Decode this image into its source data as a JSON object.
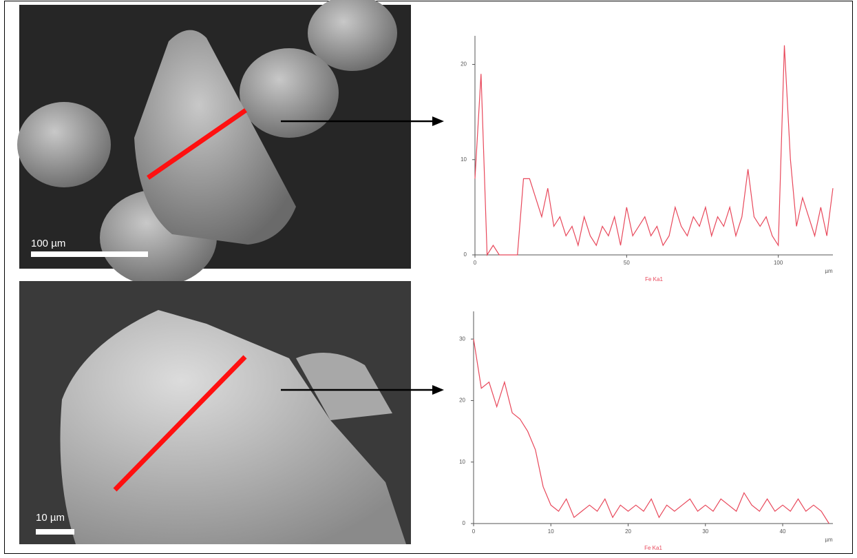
{
  "images": [
    {
      "scale_bar": "100 µm"
    },
    {
      "scale_bar": "10 µm"
    }
  ],
  "chart_data": [
    {
      "type": "line",
      "xlabel": "Fe Ka1",
      "x_unit": "µm",
      "color": "#e8475a",
      "xlim": [
        0,
        118
      ],
      "ylim": [
        0,
        23
      ],
      "xticks": [
        0,
        50,
        100
      ],
      "yticks": [
        0,
        10,
        20
      ],
      "x": [
        0,
        2,
        4,
        6,
        8,
        10,
        12,
        14,
        16,
        18,
        20,
        22,
        24,
        26,
        28,
        30,
        32,
        34,
        36,
        38,
        40,
        42,
        44,
        46,
        48,
        50,
        52,
        54,
        56,
        58,
        60,
        62,
        64,
        66,
        68,
        70,
        72,
        74,
        76,
        78,
        80,
        82,
        84,
        86,
        88,
        90,
        92,
        94,
        96,
        98,
        100,
        102,
        104,
        106,
        108,
        110,
        112,
        114,
        116,
        118
      ],
      "values": [
        8,
        19,
        0,
        1,
        0,
        0,
        0,
        0,
        8,
        8,
        6,
        4,
        7,
        3,
        4,
        2,
        3,
        1,
        4,
        2,
        1,
        3,
        2,
        4,
        1,
        5,
        2,
        3,
        4,
        2,
        3,
        1,
        2,
        5,
        3,
        2,
        4,
        3,
        5,
        2,
        4,
        3,
        5,
        2,
        4,
        9,
        4,
        3,
        4,
        2,
        1,
        22,
        10,
        3,
        6,
        4,
        2,
        5,
        2,
        7
      ]
    },
    {
      "type": "line",
      "xlabel": "Fe Ka1",
      "x_unit": "µm",
      "color": "#e8475a",
      "xlim": [
        0,
        46.5
      ],
      "ylim": [
        0,
        34.5
      ],
      "xticks": [
        0,
        10,
        20,
        30,
        40
      ],
      "yticks": [
        0,
        10,
        20,
        30
      ],
      "x": [
        0,
        1,
        2,
        3,
        4,
        5,
        6,
        7,
        8,
        9,
        10,
        11,
        12,
        13,
        14,
        15,
        16,
        17,
        18,
        19,
        20,
        21,
        22,
        23,
        24,
        25,
        26,
        27,
        28,
        29,
        30,
        31,
        32,
        33,
        34,
        35,
        36,
        37,
        38,
        39,
        40,
        41,
        42,
        43,
        44,
        45,
        46
      ],
      "values": [
        30,
        22,
        23,
        19,
        23,
        18,
        17,
        15,
        12,
        6,
        3,
        2,
        4,
        1,
        2,
        3,
        2,
        4,
        1,
        3,
        2,
        3,
        2,
        4,
        1,
        3,
        2,
        3,
        4,
        2,
        3,
        2,
        4,
        3,
        2,
        5,
        3,
        2,
        4,
        2,
        3,
        2,
        4,
        2,
        3,
        2,
        0
      ]
    }
  ]
}
